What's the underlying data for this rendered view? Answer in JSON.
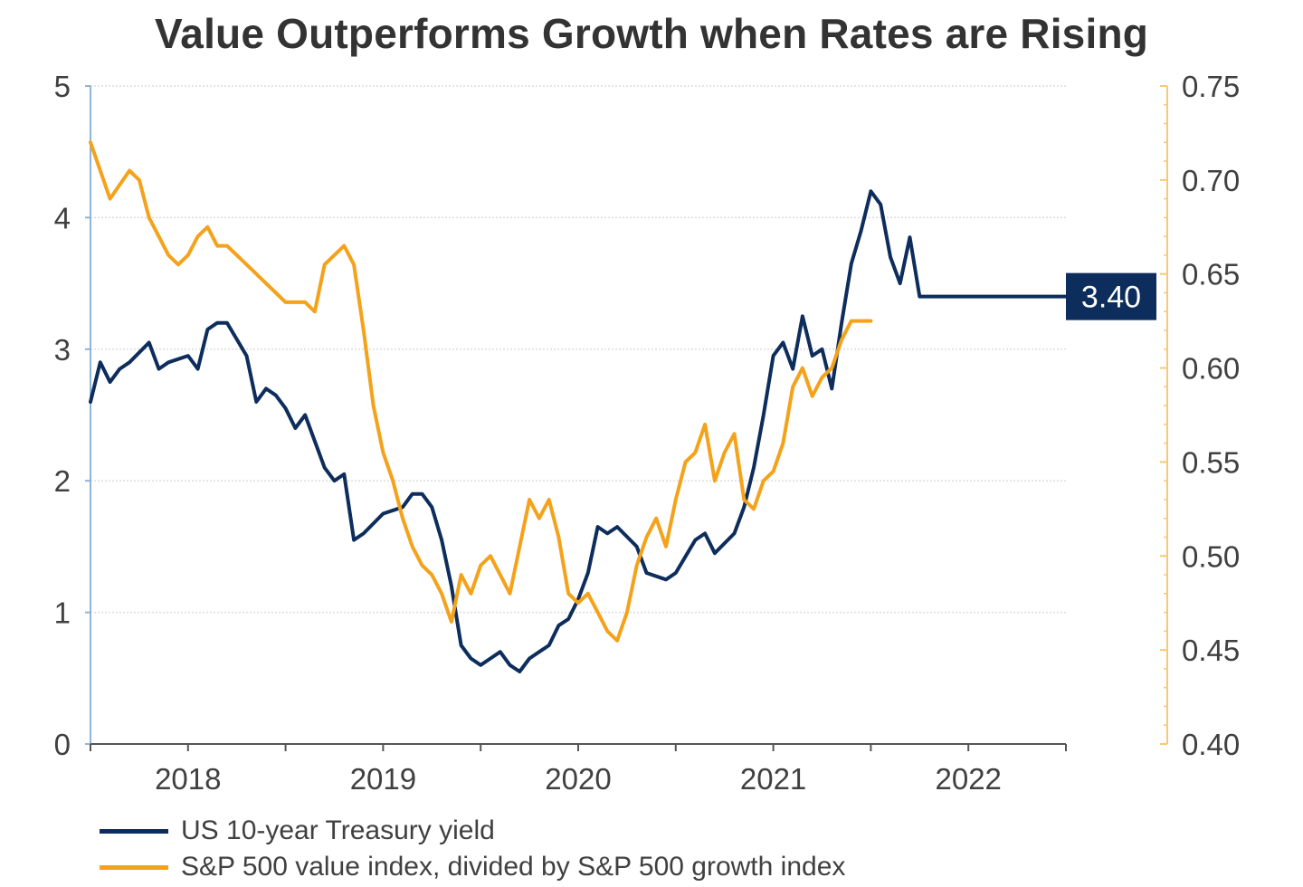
{
  "chart_data": {
    "type": "line",
    "title": "Value Outperforms Growth when Rates are Rising",
    "x_tick_labels": [
      "2018",
      "2019",
      "2020",
      "2021",
      "2022"
    ],
    "x_tick_years": [
      2018,
      2019,
      2020,
      2021,
      2022
    ],
    "xlim": [
      2017.5,
      2022.5
    ],
    "left_axis": {
      "ylim": [
        0,
        5
      ],
      "ticks": [
        0,
        1,
        2,
        3,
        4,
        5
      ],
      "tick_labels": [
        "0",
        "1",
        "2",
        "3",
        "4",
        "5"
      ]
    },
    "right_axis": {
      "ylim": [
        0.4,
        0.75
      ],
      "ticks": [
        0.4,
        0.45,
        0.5,
        0.55,
        0.6,
        0.65,
        0.7,
        0.75
      ],
      "tick_labels": [
        "0.40",
        "0.45",
        "0.50",
        "0.55",
        "0.60",
        "0.65",
        "0.70",
        "0.75"
      ]
    },
    "grid": "horizontal",
    "legend_position": "bottom-left",
    "end_value_label": "3.40",
    "series": [
      {
        "name": "US 10-year Treasury yield",
        "axis": "left",
        "color": "#0d2d5c",
        "x": [
          2017.5,
          2017.55,
          2017.6,
          2017.65,
          2017.7,
          2017.8,
          2017.85,
          2017.9,
          2018.0,
          2018.05,
          2018.1,
          2018.15,
          2018.2,
          2018.3,
          2018.35,
          2018.4,
          2018.45,
          2018.5,
          2018.55,
          2018.6,
          2018.7,
          2018.75,
          2018.8,
          2018.85,
          2018.9,
          2019.0,
          2019.1,
          2019.15,
          2019.2,
          2019.25,
          2019.3,
          2019.35,
          2019.4,
          2019.45,
          2019.5,
          2019.55,
          2019.6,
          2019.65,
          2019.7,
          2019.75,
          2019.8,
          2019.85,
          2019.9,
          2019.95,
          2020.0,
          2020.05,
          2020.1,
          2020.15,
          2020.2,
          2020.3,
          2020.35,
          2020.45,
          2020.5,
          2020.6,
          2020.65,
          2020.7,
          2020.8,
          2020.85,
          2020.9,
          2020.95,
          2021.0,
          2021.05,
          2021.1,
          2021.15,
          2021.2,
          2021.25,
          2021.3,
          2021.35,
          2021.4,
          2021.45,
          2021.5,
          2021.55,
          2021.6,
          2021.65,
          2021.7,
          2021.75,
          2021.8,
          2021.85,
          2021.9,
          2021.95,
          2022.0,
          2022.05,
          2022.1,
          2022.15,
          2022.2,
          2022.25,
          2022.3,
          2022.35,
          2022.4,
          2022.45,
          2022.5
        ],
        "values": [
          2.6,
          2.9,
          2.75,
          2.85,
          2.9,
          3.05,
          2.85,
          2.9,
          2.95,
          2.85,
          3.15,
          3.2,
          3.2,
          2.95,
          2.6,
          2.7,
          2.65,
          2.55,
          2.4,
          2.5,
          2.1,
          2.0,
          2.05,
          1.55,
          1.6,
          1.75,
          1.8,
          1.9,
          1.9,
          1.8,
          1.55,
          1.2,
          0.75,
          0.65,
          0.6,
          0.65,
          0.7,
          0.6,
          0.55,
          0.65,
          0.7,
          0.75,
          0.9,
          0.95,
          1.1,
          1.3,
          1.65,
          1.6,
          1.65,
          1.5,
          1.3,
          1.25,
          1.3,
          1.55,
          1.6,
          1.45,
          1.6,
          1.8,
          2.1,
          2.5,
          2.95,
          3.05,
          2.85,
          3.25,
          2.95,
          3.0,
          2.7,
          3.2,
          3.65,
          3.9,
          4.2,
          4.1,
          3.7,
          3.5,
          3.85,
          3.4,
          3.4,
          3.4,
          3.4,
          3.4,
          3.4,
          3.4,
          3.4,
          3.4,
          3.4,
          3.4,
          3.4,
          3.4,
          3.4,
          3.4,
          3.4
        ]
      },
      {
        "name": "S&P 500 value index, divided by S&P 500 growth index",
        "axis": "right",
        "color": "#f5a21b",
        "x": [
          2017.5,
          2017.55,
          2017.6,
          2017.7,
          2017.75,
          2017.8,
          2017.85,
          2017.9,
          2017.95,
          2018.0,
          2018.05,
          2018.1,
          2018.15,
          2018.2,
          2018.25,
          2018.3,
          2018.35,
          2018.4,
          2018.45,
          2018.5,
          2018.55,
          2018.6,
          2018.65,
          2018.7,
          2018.75,
          2018.8,
          2018.85,
          2018.9,
          2018.95,
          2019.0,
          2019.05,
          2019.1,
          2019.15,
          2019.2,
          2019.25,
          2019.3,
          2019.35,
          2019.4,
          2019.45,
          2019.5,
          2019.55,
          2019.6,
          2019.65,
          2019.7,
          2019.75,
          2019.8,
          2019.85,
          2019.9,
          2019.95,
          2020.0,
          2020.05,
          2020.1,
          2020.15,
          2020.2,
          2020.25,
          2020.3,
          2020.35,
          2020.4,
          2020.45,
          2020.5,
          2020.55,
          2020.6,
          2020.65,
          2020.7,
          2020.75,
          2020.8,
          2020.85,
          2020.9,
          2020.95,
          2021.0,
          2021.05,
          2021.1,
          2021.15,
          2021.2,
          2021.25,
          2021.3,
          2021.35,
          2021.4,
          2021.45,
          2021.5
        ],
        "values": [
          0.72,
          0.705,
          0.69,
          0.705,
          0.7,
          0.68,
          0.67,
          0.66,
          0.655,
          0.66,
          0.67,
          0.675,
          0.665,
          0.665,
          0.66,
          0.655,
          0.65,
          0.645,
          0.64,
          0.635,
          0.635,
          0.635,
          0.63,
          0.655,
          0.66,
          0.665,
          0.655,
          0.62,
          0.58,
          0.555,
          0.54,
          0.52,
          0.505,
          0.495,
          0.49,
          0.48,
          0.465,
          0.49,
          0.48,
          0.495,
          0.5,
          0.49,
          0.48,
          0.505,
          0.53,
          0.52,
          0.53,
          0.51,
          0.48,
          0.475,
          0.48,
          0.47,
          0.46,
          0.455,
          0.47,
          0.495,
          0.51,
          0.52,
          0.505,
          0.53,
          0.55,
          0.555,
          0.57,
          0.54,
          0.555,
          0.565,
          0.53,
          0.525,
          0.54,
          0.545,
          0.56,
          0.59,
          0.6,
          0.585,
          0.595,
          0.6,
          0.615,
          0.625,
          0.625,
          0.625
        ]
      }
    ]
  }
}
